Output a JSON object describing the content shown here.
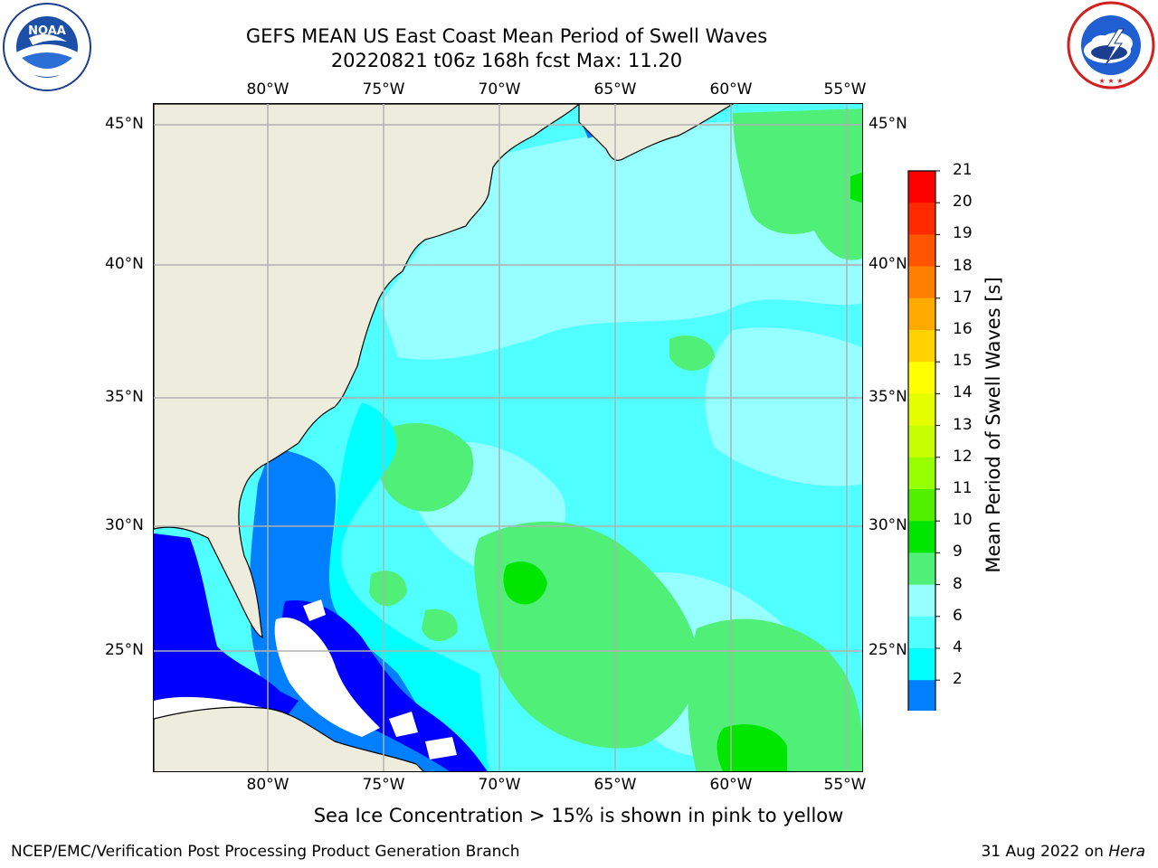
{
  "header": {
    "title_line1": "GEFS MEAN US East Coast Mean Period of Swell Waves",
    "title_line2": "20220821 t06z 168h fcst   Max: 11.20"
  },
  "logos": {
    "left": {
      "name": "noaa-logo",
      "text": "NOAA",
      "ring_text": "NATIONAL OCEANIC AND ATMOSPHERIC ADMINISTRATION · U.S. DEPARTMENT OF COMMERCE"
    },
    "right": {
      "name": "nws-logo",
      "ring_text": "NATIONAL WEATHER SERVICE"
    }
  },
  "map": {
    "longitude_labels": [
      "80°W",
      "75°W",
      "70°W",
      "65°W",
      "60°W",
      "55°W"
    ],
    "latitude_labels": [
      "45°N",
      "40°N",
      "35°N",
      "30°N",
      "25°N"
    ],
    "land_color": "#eeecdc",
    "grid_color": "#b0b0b0"
  },
  "colorbar": {
    "label": "Mean Period of Swell Waves [s]",
    "tick_labels": [
      "21",
      "20",
      "19",
      "18",
      "17",
      "16",
      "15",
      "14",
      "13",
      "12",
      "11",
      "10",
      "9",
      "8",
      "6",
      "4",
      "2"
    ],
    "colors_top_to_bottom": [
      "#ff0000",
      "#ff2a00",
      "#ff5500",
      "#ff8000",
      "#ffaa00",
      "#ffd200",
      "#ffff00",
      "#e6ff00",
      "#c8ff00",
      "#96ff00",
      "#50f000",
      "#00e600",
      "#50f078",
      "#96ffff",
      "#50ffff",
      "#00ffff",
      "#0080ff"
    ],
    "underflow_color": "#0000ff"
  },
  "footer": {
    "note": "Sea Ice Concentration > 15% is shown in pink to yellow",
    "credit": "NCEP/EMC/Verification Post Processing Product Generation Branch",
    "date": "31 Aug 2022 on",
    "host": "Hera"
  }
}
